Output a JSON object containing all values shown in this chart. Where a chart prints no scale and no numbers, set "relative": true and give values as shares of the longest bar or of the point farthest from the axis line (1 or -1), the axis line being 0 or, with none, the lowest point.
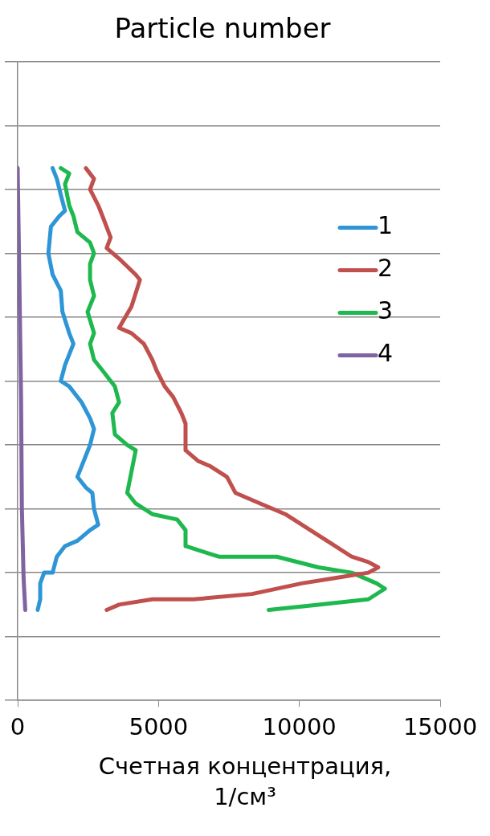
{
  "chart_data": {
    "type": "line",
    "title": "Particle number",
    "xlabel": "Счетная концентрация, 1/см³",
    "xlim": [
      0,
      15000
    ],
    "xticks": [
      0,
      5000,
      10000,
      15000
    ],
    "relative": true,
    "tick_labels": "x",
    "grid": "y",
    "legend": "right",
    "marker": "none",
    "line_style": "solid",
    "series": [
      {
        "name": "1",
        "color": "#2e95d6",
        "x": [
          1240,
          1390,
          1530,
          1680,
          1480,
          1180,
          1090,
          1240,
          1530,
          1590,
          1830,
          1980,
          1680,
          1530,
          1830,
          2270,
          2570,
          2710,
          2570,
          2270,
          2120,
          2420,
          2650,
          2710,
          2860,
          2570,
          2120,
          1680,
          1390,
          1240,
          940,
          800,
          800,
          710
        ],
        "values": [
          1.0,
          0.98,
          0.95,
          0.92,
          0.91,
          0.89,
          0.84,
          0.8,
          0.77,
          0.73,
          0.69,
          0.67,
          0.63,
          0.6,
          0.59,
          0.56,
          0.53,
          0.51,
          0.48,
          0.44,
          0.42,
          0.4,
          0.39,
          0.36,
          0.33,
          0.32,
          0.3,
          0.29,
          0.27,
          0.24,
          0.24,
          0.22,
          0.19,
          0.17
        ]
      },
      {
        "name": "2",
        "color": "#c0504d",
        "x": [
          2420,
          2710,
          2570,
          2860,
          3010,
          3300,
          3160,
          3600,
          4190,
          4340,
          4040,
          3600,
          4040,
          4480,
          4780,
          4930,
          5220,
          5520,
          5810,
          5960,
          5960,
          6400,
          6840,
          7430,
          7730,
          8610,
          9500,
          10090,
          10680,
          11270,
          11860,
          12450,
          12800,
          12450,
          11270,
          10090,
          8320,
          6250,
          4780,
          3600,
          3160
        ],
        "values": [
          1.0,
          0.98,
          0.96,
          0.93,
          0.91,
          0.87,
          0.85,
          0.83,
          0.8,
          0.79,
          0.74,
          0.7,
          0.69,
          0.67,
          0.64,
          0.62,
          0.59,
          0.57,
          0.54,
          0.52,
          0.47,
          0.45,
          0.44,
          0.42,
          0.39,
          0.37,
          0.35,
          0.33,
          0.31,
          0.29,
          0.27,
          0.26,
          0.25,
          0.24,
          0.23,
          0.22,
          0.2,
          0.19,
          0.19,
          0.18,
          0.17
        ]
      },
      {
        "name": "3",
        "color": "#1fb84f",
        "x": [
          1530,
          1830,
          1680,
          1830,
          1980,
          2120,
          2570,
          2710,
          2570,
          2570,
          2710,
          2480,
          2710,
          2570,
          2710,
          3010,
          3450,
          3600,
          3360,
          3450,
          3890,
          4190,
          4040,
          3890,
          4190,
          4780,
          5660,
          5960,
          5960,
          6550,
          7140,
          9200,
          10680,
          11860,
          12740,
          13040,
          12450,
          10680,
          8910
        ],
        "values": [
          1.0,
          0.99,
          0.97,
          0.93,
          0.91,
          0.88,
          0.86,
          0.84,
          0.82,
          0.79,
          0.76,
          0.73,
          0.69,
          0.67,
          0.64,
          0.62,
          0.59,
          0.56,
          0.54,
          0.5,
          0.48,
          0.47,
          0.43,
          0.39,
          0.37,
          0.35,
          0.34,
          0.32,
          0.29,
          0.28,
          0.27,
          0.27,
          0.25,
          0.24,
          0.22,
          0.21,
          0.19,
          0.18,
          0.17
        ]
      },
      {
        "name": "4",
        "color": "#8064a2",
        "x": [
          0,
          60,
          120,
          150,
          210,
          270
        ],
        "values": [
          1.0,
          0.79,
          0.57,
          0.36,
          0.23,
          0.17
        ]
      }
    ]
  }
}
